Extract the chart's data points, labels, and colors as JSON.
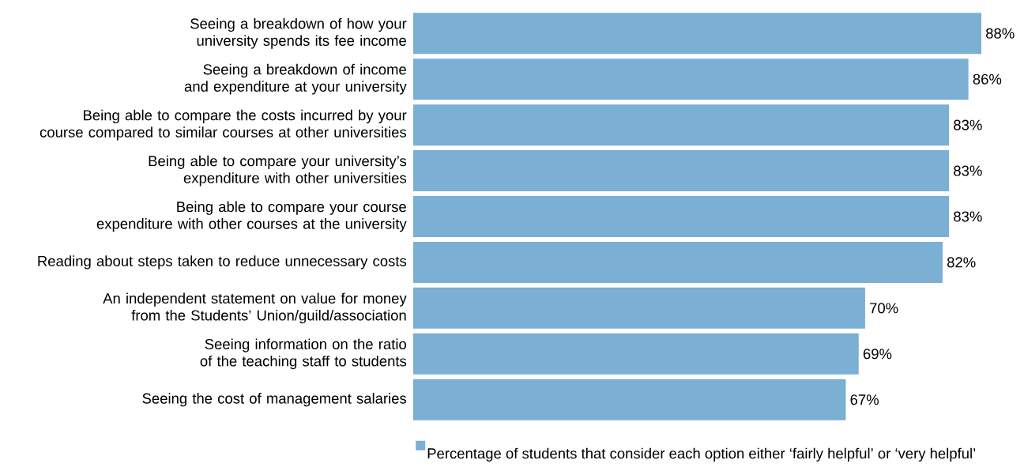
{
  "chart_data": {
    "type": "bar",
    "orientation": "horizontal",
    "categories": [
      "Seeing a breakdown of how your university spends its fee income",
      "Seeing a breakdown of income and expenditure at your university",
      "Being able to compare the costs incurred by your course compared to similar courses at other universities",
      "Being able to compare your university’s expenditure with other universities",
      "Being able to compare your course expenditure with other courses at the university",
      "Reading about steps taken to reduce unnecessary costs",
      "An independent statement on value for money from the Students’ Union/guild/association",
      "Seeing information on the ratio of the teaching staff to students",
      "Seeing the cost of management salaries"
    ],
    "series": [
      {
        "name": "Percentage of students that consider each option either ‘fairly helpful’ or ‘very helpful’",
        "color": "#7bafd4",
        "values": [
          88,
          86,
          83,
          83,
          83,
          82,
          70,
          69,
          67
        ],
        "value_labels": [
          "88%",
          "86%",
          "83%",
          "83%",
          "83%",
          "82%",
          "70%",
          "69%",
          "67%"
        ]
      }
    ],
    "legend": "bottom"
  }
}
